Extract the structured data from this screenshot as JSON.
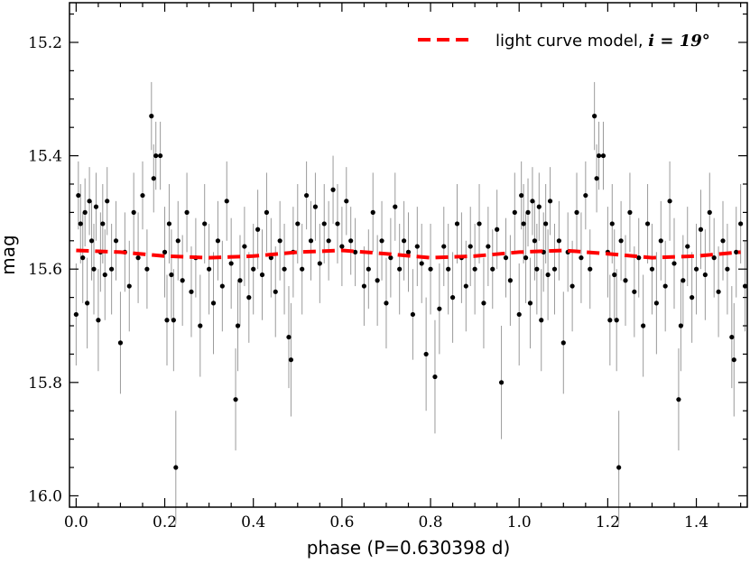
{
  "chart_data": {
    "type": "scatter",
    "xlabel": "phase (P=0.630398 d)",
    "ylabel": "mag",
    "xlim": [
      -0.015,
      1.515
    ],
    "ylim": [
      16.02,
      15.13
    ],
    "y_inverted": true,
    "x_major_ticks": [
      0.0,
      0.2,
      0.4,
      0.6,
      0.8,
      1.0,
      1.2,
      1.4
    ],
    "x_tick_labels": [
      "0.0",
      "0.2",
      "0.4",
      "0.6",
      "0.8",
      "1.0",
      "1.2",
      "1.4"
    ],
    "y_major_ticks": [
      15.2,
      15.4,
      15.6,
      15.8,
      16.0
    ],
    "y_tick_labels": [
      "15.2",
      "15.4",
      "15.6",
      "15.8",
      "16.0"
    ],
    "grid": false,
    "legend": {
      "placement": "top-right",
      "entries": [
        {
          "label": "light curve model, ",
          "math": "i = 19°",
          "style": "dashed",
          "color": "#ff0000"
        }
      ]
    },
    "colors": {
      "points": "#000000",
      "errorbars": "#9a9a9a",
      "model": "#ff0000"
    },
    "series": [
      {
        "kind": "model",
        "x": [
          0.0,
          0.1,
          0.2,
          0.3,
          0.4,
          0.5,
          0.6,
          0.7,
          0.8,
          0.9,
          1.0,
          1.1,
          1.2,
          1.3,
          1.4,
          1.5
        ],
        "y": [
          15.567,
          15.57,
          15.577,
          15.58,
          15.577,
          15.57,
          15.567,
          15.573,
          15.58,
          15.577,
          15.57,
          15.567,
          15.573,
          15.58,
          15.577,
          15.57
        ]
      },
      {
        "kind": "observations",
        "points": [
          [
            0.0,
            15.68,
            0.09
          ],
          [
            0.005,
            15.47,
            0.06
          ],
          [
            0.01,
            15.52,
            0.07
          ],
          [
            0.015,
            15.58,
            0.08
          ],
          [
            0.02,
            15.5,
            0.06
          ],
          [
            0.025,
            15.66,
            0.08
          ],
          [
            0.03,
            15.48,
            0.06
          ],
          [
            0.035,
            15.55,
            0.07
          ],
          [
            0.04,
            15.6,
            0.08
          ],
          [
            0.045,
            15.49,
            0.06
          ],
          [
            0.05,
            15.69,
            0.09
          ],
          [
            0.055,
            15.57,
            0.07
          ],
          [
            0.06,
            15.52,
            0.07
          ],
          [
            0.065,
            15.61,
            0.08
          ],
          [
            0.07,
            15.48,
            0.06
          ],
          [
            0.08,
            15.6,
            0.08
          ],
          [
            0.09,
            15.55,
            0.07
          ],
          [
            0.1,
            15.73,
            0.09
          ],
          [
            0.11,
            15.57,
            0.07
          ],
          [
            0.12,
            15.63,
            0.08
          ],
          [
            0.13,
            15.5,
            0.07
          ],
          [
            0.14,
            15.58,
            0.08
          ],
          [
            0.15,
            15.47,
            0.06
          ],
          [
            0.16,
            15.6,
            0.07
          ],
          [
            0.17,
            15.33,
            0.06
          ],
          [
            0.175,
            15.44,
            0.06
          ],
          [
            0.18,
            15.4,
            0.06
          ],
          [
            0.19,
            15.4,
            0.06
          ],
          [
            0.2,
            15.57,
            0.08
          ],
          [
            0.205,
            15.69,
            0.08
          ],
          [
            0.21,
            15.52,
            0.07
          ],
          [
            0.215,
            15.61,
            0.08
          ],
          [
            0.22,
            15.69,
            0.09
          ],
          [
            0.225,
            15.95,
            0.1
          ],
          [
            0.23,
            15.55,
            0.07
          ],
          [
            0.24,
            15.62,
            0.08
          ],
          [
            0.25,
            15.5,
            0.07
          ],
          [
            0.26,
            15.64,
            0.08
          ],
          [
            0.27,
            15.58,
            0.07
          ],
          [
            0.28,
            15.7,
            0.09
          ],
          [
            0.29,
            15.52,
            0.07
          ],
          [
            0.3,
            15.6,
            0.08
          ],
          [
            0.31,
            15.66,
            0.09
          ],
          [
            0.32,
            15.55,
            0.07
          ],
          [
            0.33,
            15.63,
            0.08
          ],
          [
            0.34,
            15.48,
            0.07
          ],
          [
            0.35,
            15.59,
            0.08
          ],
          [
            0.36,
            15.83,
            0.09
          ],
          [
            0.365,
            15.7,
            0.08
          ],
          [
            0.37,
            15.62,
            0.08
          ],
          [
            0.38,
            15.56,
            0.07
          ],
          [
            0.39,
            15.65,
            0.08
          ],
          [
            0.4,
            15.6,
            0.08
          ],
          [
            0.41,
            15.53,
            0.07
          ],
          [
            0.42,
            15.61,
            0.08
          ],
          [
            0.43,
            15.5,
            0.07
          ],
          [
            0.44,
            15.58,
            0.07
          ],
          [
            0.45,
            15.64,
            0.08
          ],
          [
            0.46,
            15.55,
            0.07
          ],
          [
            0.47,
            15.6,
            0.08
          ],
          [
            0.48,
            15.72,
            0.09
          ],
          [
            0.485,
            15.76,
            0.1
          ],
          [
            0.49,
            15.57,
            0.08
          ],
          [
            0.5,
            15.52,
            0.07
          ],
          [
            0.51,
            15.6,
            0.08
          ],
          [
            0.52,
            15.47,
            0.06
          ],
          [
            0.53,
            15.55,
            0.07
          ],
          [
            0.54,
            15.49,
            0.06
          ],
          [
            0.55,
            15.59,
            0.07
          ],
          [
            0.56,
            15.52,
            0.07
          ],
          [
            0.57,
            15.55,
            0.07
          ],
          [
            0.58,
            15.46,
            0.06
          ],
          [
            0.59,
            15.52,
            0.07
          ],
          [
            0.6,
            15.56,
            0.07
          ],
          [
            0.61,
            15.48,
            0.06
          ],
          [
            0.62,
            15.55,
            0.06
          ],
          [
            0.63,
            15.57,
            0.06
          ],
          [
            0.65,
            15.63,
            0.07
          ],
          [
            0.66,
            15.6,
            0.07
          ],
          [
            0.67,
            15.5,
            0.07
          ],
          [
            0.68,
            15.62,
            0.08
          ],
          [
            0.69,
            15.55,
            0.07
          ],
          [
            0.7,
            15.66,
            0.08
          ],
          [
            0.71,
            15.58,
            0.07
          ],
          [
            0.72,
            15.49,
            0.06
          ],
          [
            0.73,
            15.6,
            0.08
          ],
          [
            0.74,
            15.55,
            0.07
          ],
          [
            0.75,
            15.57,
            0.07
          ],
          [
            0.76,
            15.68,
            0.08
          ],
          [
            0.77,
            15.56,
            0.07
          ],
          [
            0.78,
            15.59,
            0.07
          ],
          [
            0.79,
            15.75,
            0.1
          ],
          [
            0.8,
            15.6,
            0.08
          ],
          [
            0.81,
            15.79,
            0.1
          ],
          [
            0.82,
            15.67,
            0.08
          ],
          [
            0.83,
            15.56,
            0.07
          ],
          [
            0.84,
            15.6,
            0.08
          ],
          [
            0.85,
            15.65,
            0.08
          ],
          [
            0.86,
            15.52,
            0.07
          ],
          [
            0.87,
            15.58,
            0.08
          ],
          [
            0.88,
            15.63,
            0.08
          ],
          [
            0.89,
            15.56,
            0.07
          ],
          [
            0.9,
            15.6,
            0.08
          ],
          [
            0.91,
            15.52,
            0.07
          ],
          [
            0.92,
            15.66,
            0.08
          ],
          [
            0.93,
            15.56,
            0.07
          ],
          [
            0.94,
            15.6,
            0.07
          ],
          [
            0.95,
            15.53,
            0.07
          ],
          [
            0.96,
            15.8,
            0.1
          ],
          [
            0.97,
            15.58,
            0.07
          ],
          [
            0.98,
            15.62,
            0.08
          ],
          [
            0.99,
            15.5,
            0.07
          ],
          [
            1.0,
            15.68,
            0.09
          ],
          [
            1.005,
            15.47,
            0.06
          ],
          [
            1.01,
            15.52,
            0.07
          ],
          [
            1.015,
            15.58,
            0.08
          ],
          [
            1.02,
            15.5,
            0.06
          ],
          [
            1.025,
            15.66,
            0.08
          ],
          [
            1.03,
            15.48,
            0.06
          ],
          [
            1.035,
            15.55,
            0.07
          ],
          [
            1.04,
            15.6,
            0.08
          ],
          [
            1.045,
            15.49,
            0.06
          ],
          [
            1.05,
            15.69,
            0.09
          ],
          [
            1.055,
            15.57,
            0.07
          ],
          [
            1.06,
            15.52,
            0.07
          ],
          [
            1.065,
            15.61,
            0.08
          ],
          [
            1.07,
            15.48,
            0.06
          ],
          [
            1.08,
            15.6,
            0.08
          ],
          [
            1.09,
            15.55,
            0.07
          ],
          [
            1.1,
            15.73,
            0.09
          ],
          [
            1.11,
            15.57,
            0.07
          ],
          [
            1.12,
            15.63,
            0.08
          ],
          [
            1.13,
            15.5,
            0.07
          ],
          [
            1.14,
            15.58,
            0.08
          ],
          [
            1.15,
            15.47,
            0.06
          ],
          [
            1.16,
            15.6,
            0.07
          ],
          [
            1.17,
            15.33,
            0.06
          ],
          [
            1.175,
            15.44,
            0.06
          ],
          [
            1.18,
            15.4,
            0.06
          ],
          [
            1.19,
            15.4,
            0.06
          ],
          [
            1.2,
            15.57,
            0.08
          ],
          [
            1.205,
            15.69,
            0.08
          ],
          [
            1.21,
            15.52,
            0.07
          ],
          [
            1.215,
            15.61,
            0.08
          ],
          [
            1.22,
            15.69,
            0.09
          ],
          [
            1.225,
            15.95,
            0.1
          ],
          [
            1.23,
            15.55,
            0.07
          ],
          [
            1.24,
            15.62,
            0.08
          ],
          [
            1.25,
            15.5,
            0.07
          ],
          [
            1.26,
            15.64,
            0.08
          ],
          [
            1.27,
            15.58,
            0.07
          ],
          [
            1.28,
            15.7,
            0.09
          ],
          [
            1.29,
            15.52,
            0.07
          ],
          [
            1.3,
            15.6,
            0.08
          ],
          [
            1.31,
            15.66,
            0.09
          ],
          [
            1.32,
            15.55,
            0.07
          ],
          [
            1.33,
            15.63,
            0.08
          ],
          [
            1.34,
            15.48,
            0.07
          ],
          [
            1.35,
            15.59,
            0.08
          ],
          [
            1.36,
            15.83,
            0.09
          ],
          [
            1.365,
            15.7,
            0.08
          ],
          [
            1.37,
            15.62,
            0.08
          ],
          [
            1.38,
            15.56,
            0.07
          ],
          [
            1.39,
            15.65,
            0.08
          ],
          [
            1.4,
            15.6,
            0.08
          ],
          [
            1.41,
            15.53,
            0.07
          ],
          [
            1.42,
            15.61,
            0.08
          ],
          [
            1.43,
            15.5,
            0.07
          ],
          [
            1.44,
            15.58,
            0.07
          ],
          [
            1.45,
            15.64,
            0.08
          ],
          [
            1.46,
            15.55,
            0.07
          ],
          [
            1.47,
            15.6,
            0.08
          ],
          [
            1.48,
            15.72,
            0.09
          ],
          [
            1.485,
            15.76,
            0.1
          ],
          [
            1.49,
            15.57,
            0.08
          ],
          [
            1.5,
            15.52,
            0.07
          ],
          [
            1.51,
            15.63,
            0.08
          ]
        ]
      }
    ]
  }
}
